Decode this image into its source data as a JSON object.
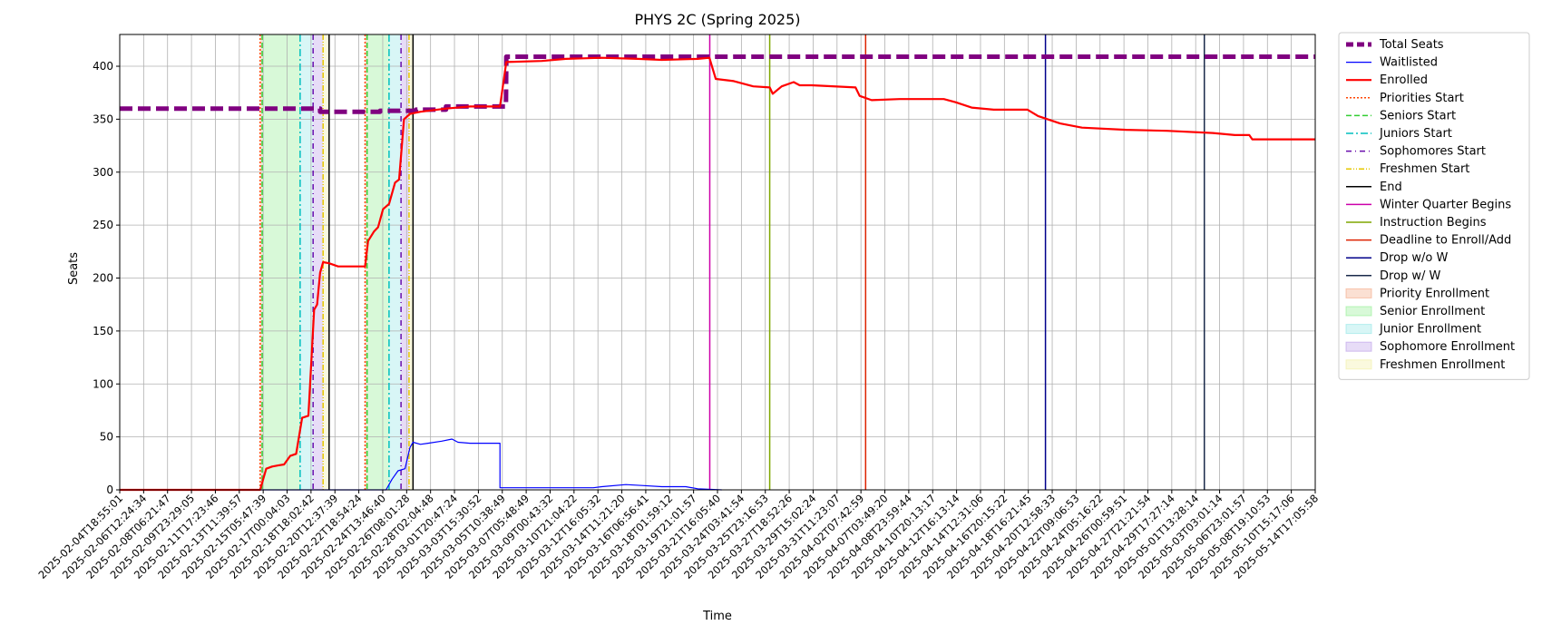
{
  "chart_data": {
    "type": "line",
    "title": "PHYS 2C (Spring 2025)",
    "xlabel": "Time",
    "ylabel": "Seats",
    "x_start": "2025-02-04T18:55:01",
    "x_end": "2025-05-15T12:00:00",
    "ylim": [
      0,
      430
    ],
    "yticks": [
      0,
      50,
      100,
      150,
      200,
      250,
      300,
      350,
      400
    ],
    "grid": true,
    "legend_position": "outside-right",
    "xtick_labels": [
      "2025-02-04T18:55:01",
      "2025-02-06T12:24:34",
      "2025-02-08T06:21:47",
      "2025-02-09T23:29:05",
      "2025-02-11T17:23:46",
      "2025-02-13T11:39:57",
      "2025-02-15T05:47:39",
      "2025-02-17T00:04:03",
      "2025-02-18T18:02:42",
      "2025-02-20T12:37:39",
      "2025-02-22T18:54:24",
      "2025-02-24T13:46:40",
      "2025-02-26T08:01:28",
      "2025-02-28T02:04:48",
      "2025-03-01T20:47:24",
      "2025-03-03T15:30:52",
      "2025-03-05T10:38:49",
      "2025-03-07T05:48:49",
      "2025-03-09T00:43:32",
      "2025-03-10T21:04:22",
      "2025-03-12T16:05:32",
      "2025-03-14T11:21:20",
      "2025-03-16T06:56:41",
      "2025-03-18T01:59:12",
      "2025-03-19T21:01:57",
      "2025-03-21T16:05:40",
      "2025-03-24T03:41:54",
      "2025-03-25T23:16:53",
      "2025-03-27T18:52:26",
      "2025-03-29T15:02:24",
      "2025-03-31T11:23:07",
      "2025-04-02T07:42:59",
      "2025-04-07T03:49:20",
      "2025-04-08T23:59:44",
      "2025-04-10T20:13:17",
      "2025-04-12T16:13:14",
      "2025-04-14T12:31:06",
      "2025-04-16T20:15:22",
      "2025-04-18T16:21:45",
      "2025-04-20T12:58:33",
      "2025-04-22T09:06:53",
      "2025-04-24T05:16:22",
      "2025-04-26T00:59:51",
      "2025-04-27T21:21:54",
      "2025-04-29T17:27:14",
      "2025-05-01T13:28:14",
      "2025-05-03T03:01:14",
      "2025-05-06T23:01:57",
      "2025-05-08T19:10:53",
      "2025-05-10T15:17:06",
      "2025-05-14T17:05:58"
    ],
    "series": [
      {
        "name": "Total Seats",
        "color": "#800080",
        "style": "dashed-thick",
        "points": [
          [
            "2025-02-04T18:55:01",
            360
          ],
          [
            "2025-02-21T12:00:00",
            360
          ],
          [
            "2025-02-21T12:00:00",
            357
          ],
          [
            "2025-02-26T12:00:00",
            357
          ],
          [
            "2025-02-26T12:00:00",
            358
          ],
          [
            "2025-03-01T12:00:00",
            358
          ],
          [
            "2025-03-01T12:00:00",
            359
          ],
          [
            "2025-03-04T00:00:00",
            359
          ],
          [
            "2025-03-04T00:00:00",
            362
          ],
          [
            "2025-03-09T00:00:00",
            362
          ],
          [
            "2025-03-09T00:43:32",
            409
          ],
          [
            "2025-05-15T12:00:00",
            409
          ]
        ]
      },
      {
        "name": "Waitlisted",
        "color": "#0000ff",
        "style": "solid-thin",
        "points": [
          [
            "2025-02-04T18:55:01",
            0
          ],
          [
            "2025-02-27T00:00:00",
            0
          ],
          [
            "2025-02-27T12:00:00",
            10
          ],
          [
            "2025-02-28T00:00:00",
            18
          ],
          [
            "2025-02-28T14:00:00",
            20
          ],
          [
            "2025-03-01T00:00:00",
            40
          ],
          [
            "2025-03-01T06:00:00",
            45
          ],
          [
            "2025-03-01T20:47:24",
            43
          ],
          [
            "2025-03-02T12:00:00",
            44
          ],
          [
            "2025-03-03T15:30:52",
            46
          ],
          [
            "2025-03-04T12:00:00",
            48
          ],
          [
            "2025-03-05T00:00:00",
            45
          ],
          [
            "2025-03-06T00:00:00",
            44
          ],
          [
            "2025-03-07T12:00:00",
            44
          ],
          [
            "2025-03-08T12:00:00",
            44
          ],
          [
            "2025-03-08T12:00:00",
            2
          ],
          [
            "2025-03-16T06:56:41",
            2
          ],
          [
            "2025-03-17T00:00:00",
            3
          ],
          [
            "2025-03-19T00:00:00",
            5
          ],
          [
            "2025-03-20T12:00:00",
            4
          ],
          [
            "2025-03-22T00:00:00",
            3
          ],
          [
            "2025-03-24T00:00:00",
            3
          ],
          [
            "2025-03-25T00:00:00",
            1
          ],
          [
            "2025-03-27T00:00:00",
            0
          ]
        ]
      },
      {
        "name": "Enrolled",
        "color": "#ff0000",
        "style": "solid-thick",
        "points": [
          [
            "2025-02-04T18:55:01",
            0
          ],
          [
            "2025-02-16T12:00:00",
            0
          ],
          [
            "2025-02-17T00:04:03",
            20
          ],
          [
            "2025-02-17T12:00:00",
            22
          ],
          [
            "2025-02-18T00:00:00",
            23
          ],
          [
            "2025-02-18T12:00:00",
            24
          ],
          [
            "2025-02-19T00:00:00",
            32
          ],
          [
            "2025-02-19T12:00:00",
            34
          ],
          [
            "2025-02-20T00:00:00",
            68
          ],
          [
            "2025-02-20T12:37:39",
            70
          ],
          [
            "2025-02-21T00:00:00",
            170
          ],
          [
            "2025-02-21T06:00:00",
            175
          ],
          [
            "2025-02-21T12:00:00",
            205
          ],
          [
            "2025-02-21T18:00:00",
            215
          ],
          [
            "2025-02-22T06:00:00",
            214
          ],
          [
            "2025-02-23T00:00:00",
            211
          ],
          [
            "2025-02-25T06:00:00",
            211
          ],
          [
            "2025-02-25T12:00:00",
            235
          ],
          [
            "2025-02-26T00:00:00",
            244
          ],
          [
            "2025-02-26T08:01:28",
            248
          ],
          [
            "2025-02-26T18:00:00",
            265
          ],
          [
            "2025-02-27T06:00:00",
            270
          ],
          [
            "2025-02-27T18:00:00",
            290
          ],
          [
            "2025-02-28T02:04:48",
            293
          ],
          [
            "2025-02-28T12:00:00",
            350
          ],
          [
            "2025-03-01T00:00:00",
            355
          ],
          [
            "2025-03-01T20:47:24",
            357
          ],
          [
            "2025-03-04T00:00:00",
            360
          ],
          [
            "2025-03-06T00:00:00",
            362
          ],
          [
            "2025-03-08T12:00:00",
            362
          ],
          [
            "2025-03-09T00:43:32",
            404
          ],
          [
            "2025-03-12T00:00:00",
            405
          ],
          [
            "2025-03-14T00:00:00",
            407
          ],
          [
            "2025-03-17T00:00:00",
            408
          ],
          [
            "2025-03-20T00:00:00",
            407
          ],
          [
            "2025-03-22T00:00:00",
            406
          ],
          [
            "2025-03-25T00:00:00",
            407
          ],
          [
            "2025-03-25T23:16:53",
            408
          ],
          [
            "2025-03-26T12:00:00",
            388
          ],
          [
            "2025-03-28T00:00:00",
            386
          ],
          [
            "2025-03-29T15:02:24",
            381
          ],
          [
            "2025-03-31T00:00:00",
            380
          ],
          [
            "2025-03-31T06:00:00",
            374
          ],
          [
            "2025-04-01T00:00:00",
            381
          ],
          [
            "2025-04-02T00:00:00",
            385
          ],
          [
            "2025-04-02T12:00:00",
            382
          ],
          [
            "2025-04-03T12:00:00",
            382
          ],
          [
            "2025-04-07T03:49:20",
            380
          ],
          [
            "2025-04-07T12:00:00",
            372
          ],
          [
            "2025-04-08T12:00:00",
            368
          ],
          [
            "2025-04-10T20:13:17",
            369
          ],
          [
            "2025-04-13T00:00:00",
            369
          ],
          [
            "2025-04-14T12:31:06",
            369
          ],
          [
            "2025-04-15T12:00:00",
            366
          ],
          [
            "2025-04-16T20:15:22",
            361
          ],
          [
            "2025-04-18T16:21:45",
            359
          ],
          [
            "2025-04-21T12:00:00",
            359
          ],
          [
            "2025-04-22T09:06:53",
            353
          ],
          [
            "2025-04-24T05:16:22",
            346
          ],
          [
            "2025-04-26T00:59:51",
            342
          ],
          [
            "2025-04-29T17:27:14",
            340
          ],
          [
            "2025-05-03T03:01:14",
            339
          ],
          [
            "2025-05-06T23:01:57",
            337
          ],
          [
            "2025-05-08T19:10:53",
            335
          ],
          [
            "2025-05-10T00:00:00",
            335
          ],
          [
            "2025-05-10T06:00:00",
            331
          ],
          [
            "2025-05-15T12:00:00",
            331
          ]
        ]
      }
    ],
    "vlines": [
      {
        "name": "Priorities Start",
        "color": "#ff4500",
        "style": "dotted",
        "x": [
          "2025-02-16T12:00:00",
          "2025-02-25T06:00:00"
        ]
      },
      {
        "name": "Seniors Start",
        "color": "#32cd32",
        "style": "dashed",
        "x": [
          "2025-02-16T16:00:00",
          "2025-02-25T10:00:00"
        ]
      },
      {
        "name": "Juniors Start",
        "color": "#00bfbf",
        "style": "dashdot",
        "x": [
          "2025-02-19T20:00:00",
          "2025-02-27T06:00:00"
        ]
      },
      {
        "name": "Sophomores Start",
        "color": "#6a0dad",
        "style": "dashdot2",
        "x": [
          "2025-02-20T22:00:00",
          "2025-02-28T06:00:00"
        ]
      },
      {
        "name": "Freshmen Start",
        "color": "#e6c700",
        "style": "dashdotdot",
        "x": [
          "2025-02-21T18:00:00",
          "2025-02-28T22:00:00"
        ]
      },
      {
        "name": "End",
        "color": "#000000",
        "style": "solid",
        "x": [
          "2025-02-22T06:00:00",
          "2025-03-01T06:00:00"
        ]
      },
      {
        "name": "Winter Quarter Begins",
        "color": "#cc00aa",
        "style": "solid",
        "x": [
          "2025-03-26T00:00:00"
        ]
      },
      {
        "name": "Instruction Begins",
        "color": "#7fa600",
        "style": "solid",
        "x": [
          "2025-03-31T00:00:00"
        ]
      },
      {
        "name": "Deadline to Enroll/Add",
        "color": "#dd2200",
        "style": "solid",
        "x": [
          "2025-04-08T00:00:00"
        ]
      },
      {
        "name": "Drop w/o W",
        "color": "#00008b",
        "style": "solid",
        "x": [
          "2025-04-23T00:00:00"
        ]
      },
      {
        "name": "Drop w/ W",
        "color": "#1a2a4a",
        "style": "solid",
        "x": [
          "2025-05-06T06:00:00"
        ]
      }
    ],
    "spans": [
      {
        "name": "Priority Enrollment",
        "color": "#f4a582",
        "ranges": [
          [
            "2025-02-16T12:00:00",
            "2025-02-16T16:00:00"
          ],
          [
            "2025-02-25T06:00:00",
            "2025-02-25T10:00:00"
          ]
        ]
      },
      {
        "name": "Senior Enrollment",
        "color": "#90ee90",
        "ranges": [
          [
            "2025-02-16T16:00:00",
            "2025-02-19T20:00:00"
          ],
          [
            "2025-02-25T10:00:00",
            "2025-02-27T06:00:00"
          ]
        ]
      },
      {
        "name": "Junior Enrollment",
        "color": "#8ee6e6",
        "ranges": [
          [
            "2025-02-19T20:00:00",
            "2025-02-20T22:00:00"
          ],
          [
            "2025-02-27T06:00:00",
            "2025-02-28T06:00:00"
          ]
        ]
      },
      {
        "name": "Sophomore Enrollment",
        "color": "#b99ae8",
        "ranges": [
          [
            "2025-02-20T22:00:00",
            "2025-02-21T18:00:00"
          ],
          [
            "2025-02-28T06:00:00",
            "2025-02-28T22:00:00"
          ]
        ]
      },
      {
        "name": "Freshmen Enrollment",
        "color": "#f0efa0",
        "ranges": [
          [
            "2025-02-21T18:00:00",
            "2025-02-22T06:00:00"
          ],
          [
            "2025-02-28T22:00:00",
            "2025-03-01T06:00:00"
          ]
        ]
      }
    ]
  }
}
